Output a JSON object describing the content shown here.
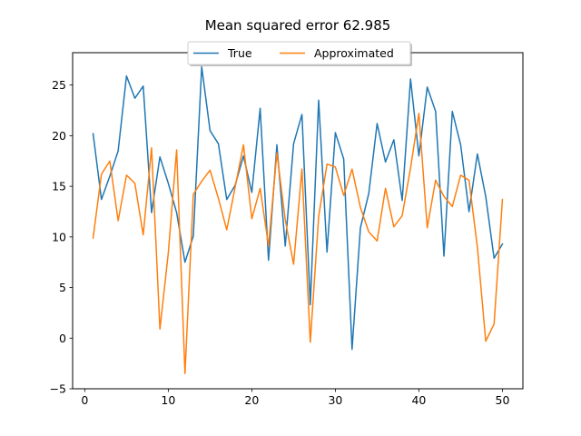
{
  "chart_data": {
    "type": "line",
    "title": "Mean squared error 62.985",
    "xlabel": "",
    "ylabel": "",
    "xlim": [
      -1.45,
      52.45
    ],
    "ylim": [
      -5,
      28.2
    ],
    "xticks": [
      0,
      10,
      20,
      30,
      40,
      50
    ],
    "yticks": [
      -5,
      0,
      5,
      10,
      15,
      20,
      25
    ],
    "grid": false,
    "legend_position": "top-center",
    "x": [
      1,
      2,
      3,
      4,
      5,
      6,
      7,
      8,
      9,
      10,
      11,
      12,
      13,
      14,
      15,
      16,
      17,
      18,
      19,
      20,
      21,
      22,
      23,
      24,
      25,
      26,
      27,
      28,
      29,
      30,
      31,
      32,
      33,
      34,
      35,
      36,
      37,
      38,
      39,
      40,
      41,
      42,
      43,
      44,
      45,
      46,
      47,
      48,
      49,
      50
    ],
    "series": [
      {
        "name": "True",
        "color": "#1f77b4",
        "values": [
          20.2,
          13.7,
          16.0,
          18.5,
          25.9,
          23.7,
          24.9,
          12.4,
          17.9,
          15.3,
          12.4,
          7.5,
          10.1,
          26.8,
          20.5,
          19.2,
          13.7,
          15.1,
          18.0,
          14.4,
          22.7,
          7.7,
          19.1,
          9.1,
          19.2,
          22.1,
          3.3,
          23.5,
          8.5,
          20.3,
          17.7,
          -1.1,
          10.9,
          14.3,
          21.2,
          17.4,
          19.6,
          13.6,
          25.6,
          18.0,
          24.8,
          22.4,
          8.1,
          22.4,
          19.1,
          12.5,
          18.2,
          14.0,
          7.9,
          9.3
        ]
      },
      {
        "name": "Approximated",
        "color": "#ff7f0e",
        "values": [
          9.9,
          16.2,
          17.5,
          11.6,
          16.1,
          15.3,
          10.2,
          18.8,
          0.9,
          8.4,
          18.6,
          -3.5,
          14.2,
          15.5,
          16.6,
          13.8,
          10.7,
          14.9,
          19.1,
          11.8,
          14.8,
          9.1,
          18.3,
          11.7,
          7.3,
          16.7,
          -0.4,
          12.0,
          17.2,
          16.9,
          14.1,
          16.7,
          12.9,
          10.5,
          9.6,
          14.8,
          11.0,
          12.1,
          16.8,
          22.2,
          10.9,
          15.6,
          14.0,
          13.0,
          16.1,
          15.6,
          9.0,
          -0.3,
          1.4,
          13.7
        ]
      }
    ]
  }
}
